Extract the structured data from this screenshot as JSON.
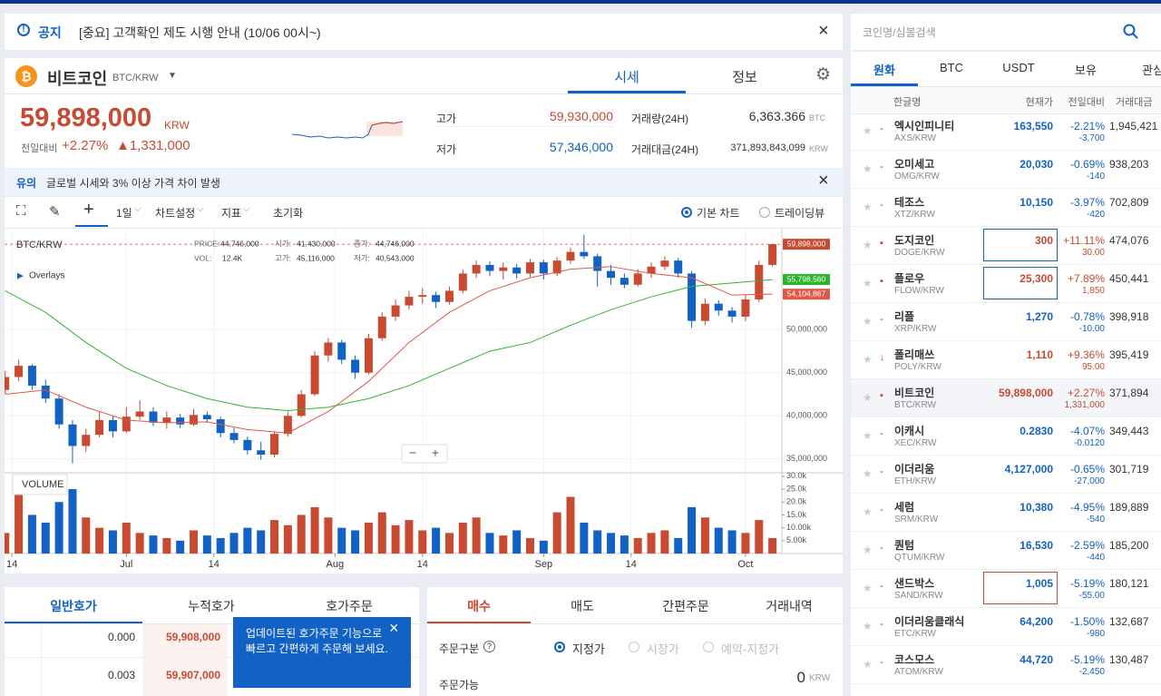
{
  "notice": {
    "label": "공지",
    "text": "[중요] 고객확인 제도 시행 안내 (10/06 00시~)"
  },
  "coin": {
    "name": "비트코인",
    "symbol": "BTC/KRW",
    "tabs": [
      "시세",
      "정보"
    ],
    "price": "59,898,000",
    "currency": "KRW",
    "change_label": "전일대비",
    "change_pct": "+2.27%",
    "change_amt": "▲1,331,000",
    "stats": [
      {
        "label": "고가",
        "value": "59,930,000"
      },
      {
        "label": "저가",
        "value": "57,346,000"
      },
      {
        "label": "거래량(24H)",
        "value": "6,363.366",
        "unit": "BTC"
      },
      {
        "label": "거래대금(24H)",
        "value": "371,893,843,099",
        "unit": "KRW"
      }
    ]
  },
  "warning": {
    "label": "유의",
    "text": "글로벌 시세와 3% 이상 가격 차이 발생"
  },
  "toolbar": {
    "items": [
      "1일",
      "차트설정",
      "지표",
      "초기화"
    ],
    "options": [
      "기본 차트",
      "트레이딩뷰"
    ]
  },
  "chart_data": {
    "type": "candlestick",
    "title": "BTC/KRW",
    "legend_info": [
      {
        "label": "PRICE:",
        "value": "44,746,000"
      },
      {
        "label": "시가:",
        "value": "41,430,000"
      },
      {
        "label": "종가:",
        "value": "44,746,000"
      },
      {
        "label": "VOL:",
        "value": "12.4K"
      },
      {
        "label": "고가:",
        "value": "45,116,000"
      },
      {
        "label": "저가:",
        "value": "40,543,000"
      }
    ],
    "overlays_label": "Overlays",
    "volume_label": "VOLUME",
    "up_color": "#c84a31",
    "down_color": "#1261c4",
    "xlim": [
      -0.1,
      115.4
    ],
    "xticks": [
      {
        "value": 1,
        "label": "14"
      },
      {
        "value": 18,
        "label": "Jul"
      },
      {
        "value": 31,
        "label": "14"
      },
      {
        "value": 49,
        "label": "Aug"
      },
      {
        "value": 62,
        "label": "14"
      },
      {
        "value": 80,
        "label": "Sep"
      },
      {
        "value": 93,
        "label": "14"
      },
      {
        "value": 110,
        "label": "Oct"
      }
    ],
    "ylim": [
      33500000,
      61700000
    ],
    "yticks": [
      {
        "value": 35000000,
        "label": "35,000,000"
      },
      {
        "value": 40000000,
        "label": "40,000,000"
      },
      {
        "value": 45000000,
        "label": "45,000,000"
      },
      {
        "value": 50000000,
        "label": "50,000,000"
      }
    ],
    "vol_ylim": [
      0,
      31000
    ],
    "vol_yticks": [
      {
        "value": 5000,
        "label": "5.00k"
      },
      {
        "value": 10000,
        "label": "10.00k"
      },
      {
        "value": 15000,
        "label": "15.0k"
      },
      {
        "value": 20000,
        "label": "20.0k"
      },
      {
        "value": 25000,
        "label": "25.0k"
      },
      {
        "value": 30000,
        "label": "30.0k"
      }
    ],
    "grid": true,
    "current_price": {
      "value": 59898000,
      "label": "59,898,000"
    },
    "candles": [
      {
        "x": 0,
        "o": 43000000,
        "h": 45200000,
        "l": 42500000,
        "c": 44500000,
        "v": 8000
      },
      {
        "x": 2,
        "o": 44500000,
        "h": 46500000,
        "l": 44000000,
        "c": 45800000,
        "v": 29000
      },
      {
        "x": 4,
        "o": 45800000,
        "h": 46000000,
        "l": 43000000,
        "c": 43500000,
        "v": 15000
      },
      {
        "x": 6,
        "o": 43500000,
        "h": 44200000,
        "l": 41500000,
        "c": 42000000,
        "v": 12000
      },
      {
        "x": 8,
        "o": 42000000,
        "h": 42500000,
        "l": 38500000,
        "c": 39000000,
        "v": 20000
      },
      {
        "x": 10,
        "o": 39000000,
        "h": 39500000,
        "l": 34500000,
        "c": 36500000,
        "v": 25000
      },
      {
        "x": 12,
        "o": 36500000,
        "h": 38500000,
        "l": 35800000,
        "c": 37800000,
        "v": 14000
      },
      {
        "x": 14,
        "o": 37800000,
        "h": 40500000,
        "l": 37500000,
        "c": 39500000,
        "v": 10000
      },
      {
        "x": 16,
        "o": 39500000,
        "h": 40000000,
        "l": 37500000,
        "c": 38200000,
        "v": 9000
      },
      {
        "x": 18,
        "o": 38200000,
        "h": 41000000,
        "l": 38000000,
        "c": 39900000,
        "v": 12000
      },
      {
        "x": 20,
        "o": 39900000,
        "h": 41800000,
        "l": 39500000,
        "c": 40500000,
        "v": 8000
      },
      {
        "x": 22,
        "o": 40500000,
        "h": 41000000,
        "l": 38800000,
        "c": 39200000,
        "v": 7000
      },
      {
        "x": 24,
        "o": 39200000,
        "h": 40500000,
        "l": 38500000,
        "c": 39800000,
        "v": 6000
      },
      {
        "x": 26,
        "o": 39800000,
        "h": 40200000,
        "l": 38600000,
        "c": 39000000,
        "v": 5000
      },
      {
        "x": 28,
        "o": 39000000,
        "h": 40800000,
        "l": 38800000,
        "c": 40100000,
        "v": 9000
      },
      {
        "x": 30,
        "o": 40100000,
        "h": 40500000,
        "l": 39200000,
        "c": 39600000,
        "v": 7000
      },
      {
        "x": 32,
        "o": 39600000,
        "h": 39900000,
        "l": 37500000,
        "c": 38000000,
        "v": 6000
      },
      {
        "x": 34,
        "o": 38000000,
        "h": 38600000,
        "l": 36800000,
        "c": 37200000,
        "v": 8000
      },
      {
        "x": 36,
        "o": 37200000,
        "h": 37600000,
        "l": 35500000,
        "c": 36000000,
        "v": 10000
      },
      {
        "x": 38,
        "o": 36000000,
        "h": 37000000,
        "l": 34900000,
        "c": 35500000,
        "v": 9000
      },
      {
        "x": 40,
        "o": 35500000,
        "h": 38200000,
        "l": 35200000,
        "c": 37900000,
        "v": 13000
      },
      {
        "x": 42,
        "o": 37900000,
        "h": 40500000,
        "l": 37600000,
        "c": 40000000,
        "v": 11000
      },
      {
        "x": 44,
        "o": 40000000,
        "h": 43000000,
        "l": 39800000,
        "c": 42500000,
        "v": 15000
      },
      {
        "x": 46,
        "o": 42500000,
        "h": 47500000,
        "l": 42300000,
        "c": 47000000,
        "v": 18000
      },
      {
        "x": 48,
        "o": 47000000,
        "h": 49000000,
        "l": 46300000,
        "c": 48500000,
        "v": 14000
      },
      {
        "x": 50,
        "o": 48500000,
        "h": 48800000,
        "l": 46000000,
        "c": 46500000,
        "v": 10000
      },
      {
        "x": 52,
        "o": 46500000,
        "h": 47000000,
        "l": 44300000,
        "c": 45000000,
        "v": 9000
      },
      {
        "x": 54,
        "o": 45000000,
        "h": 49500000,
        "l": 44800000,
        "c": 49000000,
        "v": 12000
      },
      {
        "x": 56,
        "o": 49000000,
        "h": 52000000,
        "l": 48700000,
        "c": 51500000,
        "v": 16000
      },
      {
        "x": 58,
        "o": 51500000,
        "h": 53500000,
        "l": 51000000,
        "c": 52800000,
        "v": 11000
      },
      {
        "x": 60,
        "o": 52800000,
        "h": 54500000,
        "l": 52300000,
        "c": 53800000,
        "v": 13000
      },
      {
        "x": 62,
        "o": 53800000,
        "h": 54800000,
        "l": 53000000,
        "c": 54000000,
        "v": 9000
      },
      {
        "x": 64,
        "o": 54000000,
        "h": 54400000,
        "l": 52500000,
        "c": 53200000,
        "v": 10000
      },
      {
        "x": 66,
        "o": 53200000,
        "h": 55000000,
        "l": 52900000,
        "c": 54500000,
        "v": 8000
      },
      {
        "x": 68,
        "o": 54500000,
        "h": 57000000,
        "l": 54200000,
        "c": 56500000,
        "v": 12000
      },
      {
        "x": 70,
        "o": 56500000,
        "h": 58000000,
        "l": 56000000,
        "c": 57500000,
        "v": 14000
      },
      {
        "x": 72,
        "o": 57500000,
        "h": 57900000,
        "l": 56200000,
        "c": 56800000,
        "v": 8000
      },
      {
        "x": 74,
        "o": 56800000,
        "h": 57800000,
        "l": 55800000,
        "c": 57200000,
        "v": 7000
      },
      {
        "x": 76,
        "o": 57200000,
        "h": 57600000,
        "l": 55900000,
        "c": 56500000,
        "v": 9000
      },
      {
        "x": 78,
        "o": 56500000,
        "h": 58200000,
        "l": 56100000,
        "c": 57800000,
        "v": 6000
      },
      {
        "x": 80,
        "o": 57800000,
        "h": 58100000,
        "l": 55800000,
        "c": 56500000,
        "v": 5000
      },
      {
        "x": 82,
        "o": 56500000,
        "h": 58400000,
        "l": 56200000,
        "c": 58000000,
        "v": 16000
      },
      {
        "x": 84,
        "o": 58000000,
        "h": 59500000,
        "l": 57600000,
        "c": 59000000,
        "v": 22000
      },
      {
        "x": 86,
        "o": 59000000,
        "h": 61000000,
        "l": 58200000,
        "c": 58500000,
        "v": 12000
      },
      {
        "x": 88,
        "o": 58500000,
        "h": 58800000,
        "l": 55000000,
        "c": 56800000,
        "v": 9000
      },
      {
        "x": 90,
        "o": 56800000,
        "h": 57500000,
        "l": 55200000,
        "c": 56000000,
        "v": 8000
      },
      {
        "x": 92,
        "o": 56000000,
        "h": 56500000,
        "l": 54800000,
        "c": 55200000,
        "v": 7000
      },
      {
        "x": 94,
        "o": 55200000,
        "h": 57000000,
        "l": 55000000,
        "c": 56500000,
        "v": 6000
      },
      {
        "x": 96,
        "o": 56500000,
        "h": 57800000,
        "l": 56000000,
        "c": 57300000,
        "v": 8000
      },
      {
        "x": 98,
        "o": 57300000,
        "h": 58500000,
        "l": 56900000,
        "c": 58000000,
        "v": 9000
      },
      {
        "x": 100,
        "o": 58000000,
        "h": 58300000,
        "l": 56000000,
        "c": 56500000,
        "v": 6000
      },
      {
        "x": 102,
        "o": 56500000,
        "h": 56800000,
        "l": 50200000,
        "c": 51000000,
        "v": 18000
      },
      {
        "x": 104,
        "o": 51000000,
        "h": 53600000,
        "l": 50500000,
        "c": 53000000,
        "v": 14000
      },
      {
        "x": 106,
        "o": 53000000,
        "h": 53400000,
        "l": 51600000,
        "c": 52200000,
        "v": 10000
      },
      {
        "x": 108,
        "o": 52200000,
        "h": 52600000,
        "l": 50800000,
        "c": 51500000,
        "v": 9000
      },
      {
        "x": 110,
        "o": 51500000,
        "h": 54000000,
        "l": 51000000,
        "c": 53500000,
        "v": 8000
      },
      {
        "x": 112,
        "o": 53500000,
        "h": 58000000,
        "l": 53200000,
        "c": 57500000,
        "v": 13000
      },
      {
        "x": 114,
        "o": 57500000,
        "h": 59930000,
        "l": 57300000,
        "c": 59898000,
        "v": 6000
      }
    ],
    "series": [
      {
        "color": "#2db52d",
        "x": [
          0,
          6,
          12,
          18,
          24,
          30,
          36,
          42,
          48,
          54,
          60,
          66,
          72,
          78,
          84,
          90,
          96,
          102,
          108,
          114
        ],
        "values": [
          54500000,
          52000000,
          48500000,
          45500000,
          43500000,
          42000000,
          41000000,
          40600000,
          41000000,
          42000000,
          43500000,
          45500000,
          47500000,
          48500000,
          50500000,
          52300000,
          53800000,
          55000000,
          55400000,
          55798560
        ],
        "end_label": "55,798,560"
      },
      {
        "color": "#e0584a",
        "x": [
          0,
          6,
          12,
          18,
          24,
          30,
          36,
          42,
          48,
          54,
          60,
          66,
          72,
          78,
          84,
          90,
          96,
          102,
          108,
          114
        ],
        "values": [
          42500000,
          43000000,
          41000000,
          39500000,
          39200000,
          39300000,
          38400000,
          38000000,
          40500000,
          44000000,
          48500000,
          52000000,
          54500000,
          56000000,
          57000000,
          57300000,
          56500000,
          56000000,
          54000000,
          54104867
        ],
        "end_label": "54,104,867"
      }
    ]
  },
  "orderbook": {
    "tabs": [
      "일반호가",
      "누적호가",
      "호가주문"
    ],
    "rows": [
      {
        "qty": "0.000",
        "price": "59,908,000"
      },
      {
        "qty": "0.003",
        "price": "59,907,000"
      }
    ],
    "tooltip": "업데이트된 호가주문 기능으로 빠르고 간편하게 주문해 보세요."
  },
  "order": {
    "tabs": [
      "매수",
      "매도",
      "간편주문",
      "거래내역"
    ],
    "type_label": "주문구분",
    "types": [
      "지정가",
      "시장가",
      "예약-지정가"
    ],
    "available_label": "주문가능",
    "available": "0",
    "available_unit": "KRW"
  },
  "market": {
    "search_placeholder": "코인명/심볼검색",
    "tabs": [
      "원화",
      "BTC",
      "USDT",
      "보유",
      "관심"
    ],
    "columns": [
      "한글명",
      "현재가",
      "전일대비",
      "거래대금"
    ],
    "rows": [
      {
        "name": "엑시인피니티",
        "symbol": "AXS/KRW",
        "price": "163,550",
        "pct": "-2.21%",
        "change": "-3,700",
        "volume": "1,945,421"
      },
      {
        "name": "오미세고",
        "symbol": "OMG/KRW",
        "price": "20,030",
        "pct": "-0.69%",
        "change": "-140",
        "volume": "938,203"
      },
      {
        "name": "테조스",
        "symbol": "XTZ/KRW",
        "price": "10,150",
        "pct": "-3.97%",
        "change": "-420",
        "volume": "702,809"
      },
      {
        "name": "도지코인",
        "symbol": "DOGE/KRW",
        "price": "300",
        "pct": "+11.11%",
        "change": "30.00",
        "volume": "474,076",
        "highlight": "#1261c4"
      },
      {
        "name": "플로우",
        "symbol": "FLOW/KRW",
        "price": "25,300",
        "pct": "+7.89%",
        "change": "1,850",
        "volume": "450,441",
        "highlight": "#1261c4"
      },
      {
        "name": "리플",
        "symbol": "XRP/KRW",
        "price": "1,270",
        "pct": "-0.78%",
        "change": "-10.00",
        "volume": "398,918"
      },
      {
        "name": "폴리매쓰",
        "symbol": "POLY/KRW",
        "price": "1,110",
        "pct": "+9.36%",
        "change": "95.00",
        "volume": "395,419"
      },
      {
        "name": "비트코인",
        "symbol": "BTC/KRW",
        "price": "59,898,000",
        "pct": "+2.27%",
        "change": "1,331,000",
        "volume": "371,894",
        "selected": true
      },
      {
        "name": "이캐시",
        "symbol": "XEC/KRW",
        "price": "0.2830",
        "pct": "-4.07%",
        "change": "-0.0120",
        "volume": "349,443"
      },
      {
        "name": "이더리움",
        "symbol": "ETH/KRW",
        "price": "4,127,000",
        "pct": "-0.65%",
        "change": "-27,000",
        "volume": "301,719"
      },
      {
        "name": "세럼",
        "symbol": "SRM/KRW",
        "price": "10,380",
        "pct": "-4.95%",
        "change": "-540",
        "volume": "189,889"
      },
      {
        "name": "퀀텀",
        "symbol": "QTUM/KRW",
        "price": "16,530",
        "pct": "-2.59%",
        "change": "-440",
        "volume": "185,200"
      },
      {
        "name": "샌드박스",
        "symbol": "SAND/KRW",
        "price": "1,005",
        "pct": "-5.19%",
        "change": "-55.00",
        "volume": "180,121",
        "highlight": "#c84a31"
      },
      {
        "name": "이더리움클래식",
        "symbol": "ETC/KRW",
        "price": "64,200",
        "pct": "-1.50%",
        "change": "-980",
        "volume": "132,687"
      },
      {
        "name": "코스모스",
        "symbol": "ATOM/KRW",
        "price": "44,720",
        "pct": "-5.19%",
        "change": "-2,450",
        "volume": "130,487"
      }
    ]
  }
}
